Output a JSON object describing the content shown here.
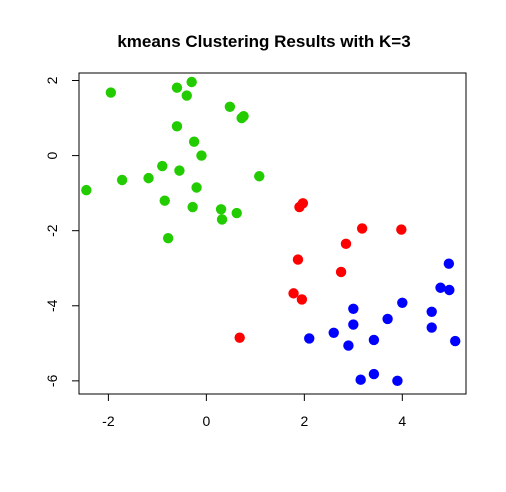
{
  "chart_data": {
    "type": "scatter",
    "title": "kmeans Clustering Results with K=3",
    "xlabel": "",
    "ylabel": "",
    "xlim": [
      -2.6,
      5.3
    ],
    "ylim": [
      -6.35,
      2.2
    ],
    "xticks": [
      -2,
      0,
      2,
      4
    ],
    "yticks": [
      -6,
      -4,
      -2,
      0,
      2
    ],
    "grid": false,
    "legend": "none",
    "series": [
      {
        "color": "#22cc00",
        "points": [
          [
            -1.95,
            1.68
          ],
          [
            -0.3,
            1.96
          ],
          [
            -0.6,
            1.81
          ],
          [
            -0.4,
            1.6
          ],
          [
            0.48,
            1.3
          ],
          [
            0.76,
            1.05
          ],
          [
            0.72,
            1.0
          ],
          [
            -0.6,
            0.78
          ],
          [
            -0.25,
            0.37
          ],
          [
            -0.1,
            0.0
          ],
          [
            -0.9,
            -0.28
          ],
          [
            -0.55,
            -0.4
          ],
          [
            1.08,
            -0.55
          ],
          [
            -1.18,
            -0.6
          ],
          [
            -1.72,
            -0.65
          ],
          [
            -2.45,
            -0.92
          ],
          [
            -0.2,
            -0.85
          ],
          [
            -0.85,
            -1.2
          ],
          [
            -0.28,
            -1.37
          ],
          [
            0.3,
            -1.43
          ],
          [
            0.62,
            -1.53
          ],
          [
            0.32,
            -1.7
          ],
          [
            -0.78,
            -2.2
          ]
        ]
      },
      {
        "color": "#ff0000",
        "points": [
          [
            1.97,
            -1.27
          ],
          [
            1.9,
            -1.37
          ],
          [
            3.18,
            -1.94
          ],
          [
            3.98,
            -1.97
          ],
          [
            2.85,
            -2.35
          ],
          [
            1.87,
            -2.77
          ],
          [
            2.75,
            -3.1
          ],
          [
            1.78,
            -3.67
          ],
          [
            1.95,
            -3.83
          ],
          [
            0.68,
            -4.85
          ]
        ]
      },
      {
        "color": "#0000ff",
        "points": [
          [
            4.95,
            -2.88
          ],
          [
            4.78,
            -3.52
          ],
          [
            4.96,
            -3.58
          ],
          [
            4.0,
            -3.92
          ],
          [
            3.0,
            -4.08
          ],
          [
            4.6,
            -4.16
          ],
          [
            3.7,
            -4.35
          ],
          [
            3.0,
            -4.5
          ],
          [
            4.6,
            -4.58
          ],
          [
            2.6,
            -4.72
          ],
          [
            2.1,
            -4.87
          ],
          [
            3.42,
            -4.91
          ],
          [
            5.08,
            -4.94
          ],
          [
            2.9,
            -5.06
          ],
          [
            3.42,
            -5.82
          ],
          [
            3.15,
            -5.97
          ],
          [
            3.9,
            -6.0
          ]
        ]
      }
    ]
  }
}
